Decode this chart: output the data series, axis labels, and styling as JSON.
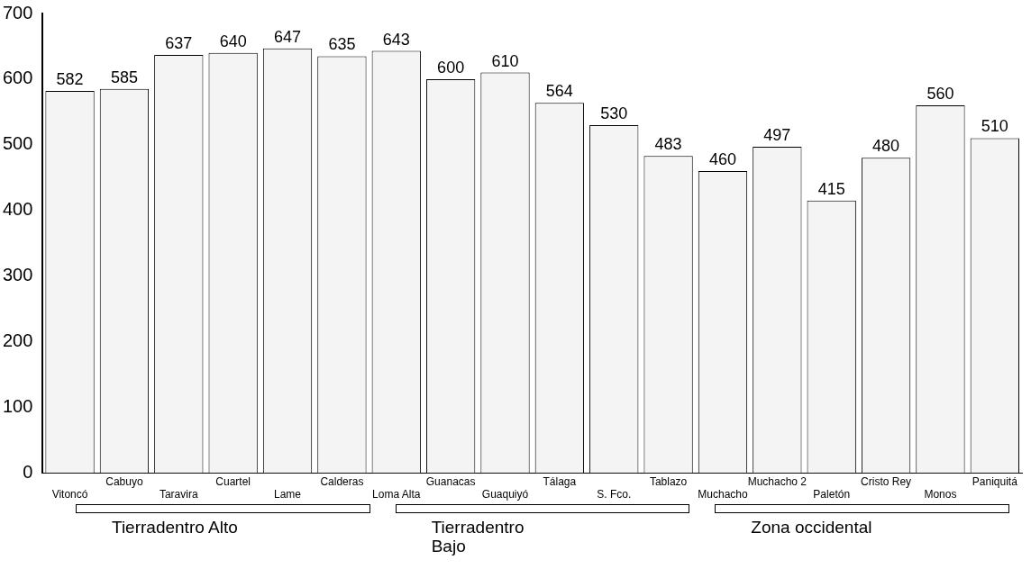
{
  "chart_data": {
    "type": "bar",
    "categories": [
      "Vitoncó",
      "Cabuyo",
      "Taravira",
      "Cuartel",
      "Lame",
      "Calderas",
      "Loma Alta",
      "Guanacas",
      "Guaquiyó",
      "Tálaga",
      "S. Fco.",
      "Tablazo",
      "Muchacho",
      "Muchacho 2",
      "Paletón",
      "Cristo Rey",
      "Monos",
      "Paniquitá"
    ],
    "values": [
      582,
      585,
      637,
      640,
      647,
      635,
      643,
      600,
      610,
      564,
      530,
      483,
      460,
      497,
      415,
      480,
      560,
      510
    ],
    "color": "#f4f4f4",
    "ylim": [
      0,
      700
    ],
    "yticks": [
      0,
      100,
      200,
      300,
      400,
      500,
      600,
      700
    ],
    "grid": false,
    "legend": false,
    "data_labels": true,
    "annotations": [
      "Tierradentro Alto",
      "Tierradentro Bajo",
      "Zona occidental"
    ]
  }
}
